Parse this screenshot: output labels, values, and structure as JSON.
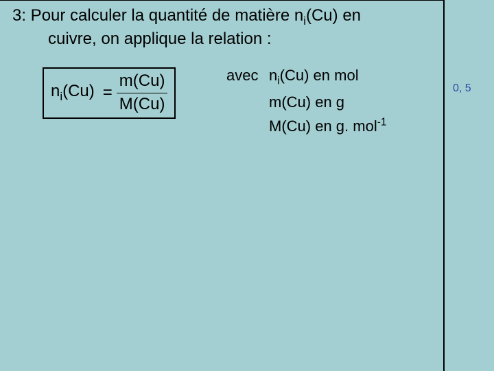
{
  "colors": {
    "background": "#a4cfd2",
    "text": "#000000",
    "side_note": "#2a4aa0",
    "border": "#000000"
  },
  "typography": {
    "body_fontsize_pt": 18,
    "side_fontsize_pt": 12,
    "family": "Arial"
  },
  "question": {
    "line1_prefix": "3: Pour calculer la quantité de matière n",
    "line1_sub": "i",
    "line1_suffix": "(Cu) en",
    "line2": "cuivre, on applique la relation :"
  },
  "formula": {
    "lhs_prefix": "n",
    "lhs_sub": "i",
    "lhs_suffix": "(Cu)",
    "equals": "=",
    "numerator": "m(Cu)",
    "denominator": "M(Cu)"
  },
  "avec": {
    "label": "avec",
    "l1_prefix": "n",
    "l1_sub": "i",
    "l1_suffix": "(Cu) en mol",
    "l2": "m(Cu) en g",
    "l3_prefix": "M(Cu) en g. mol",
    "l3_sup": "-1"
  },
  "side_note": "0, 5"
}
